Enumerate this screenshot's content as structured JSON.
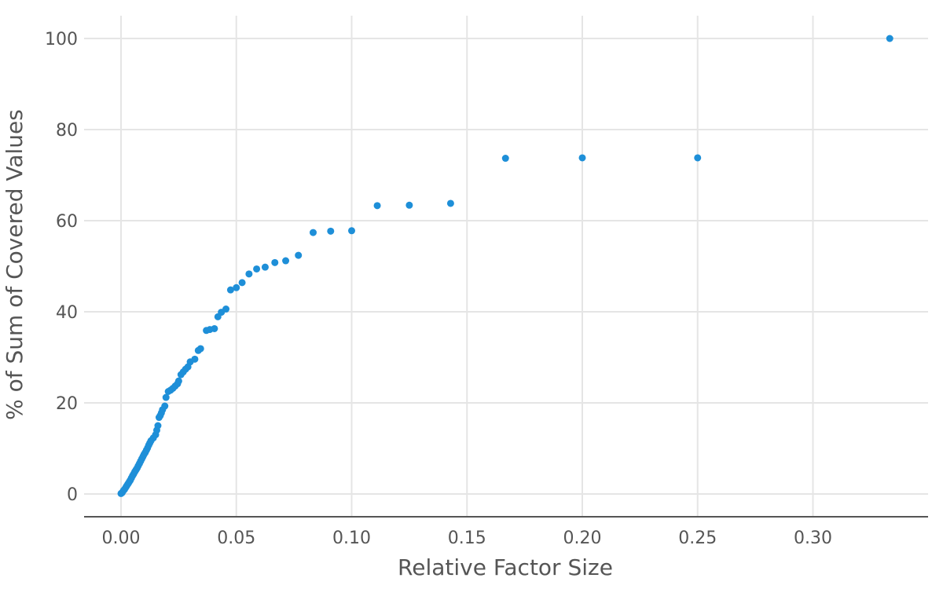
{
  "chart_data": {
    "type": "scatter",
    "title": "",
    "xlabel": "Relative Factor Size",
    "ylabel": "% of Sum of Covered Values",
    "xlim": [
      -0.0163,
      0.3495
    ],
    "ylim": [
      -5.0,
      105.0
    ],
    "x_ticks": [
      {
        "value": 0.0,
        "label": "0.00"
      },
      {
        "value": 0.05,
        "label": "0.05"
      },
      {
        "value": 0.1,
        "label": "0.10"
      },
      {
        "value": 0.15,
        "label": "0.15"
      },
      {
        "value": 0.2,
        "label": "0.20"
      },
      {
        "value": 0.25,
        "label": "0.25"
      },
      {
        "value": 0.3,
        "label": "0.30"
      }
    ],
    "y_ticks": [
      {
        "value": 0,
        "label": "0"
      },
      {
        "value": 20,
        "label": "20"
      },
      {
        "value": 40,
        "label": "40"
      },
      {
        "value": 60,
        "label": "60"
      },
      {
        "value": 80,
        "label": "80"
      },
      {
        "value": 100,
        "label": "100"
      }
    ],
    "grid": true,
    "color": "#1e8fd8",
    "points": [
      {
        "x": 0.0,
        "y": 0.1
      },
      {
        "x": 0.0005,
        "y": 0.3
      },
      {
        "x": 0.001,
        "y": 0.7
      },
      {
        "x": 0.0015,
        "y": 1.0
      },
      {
        "x": 0.002,
        "y": 1.4
      },
      {
        "x": 0.0025,
        "y": 1.8
      },
      {
        "x": 0.003,
        "y": 2.2
      },
      {
        "x": 0.0035,
        "y": 2.6
      },
      {
        "x": 0.004,
        "y": 3.0
      },
      {
        "x": 0.0045,
        "y": 3.5
      },
      {
        "x": 0.005,
        "y": 4.0
      },
      {
        "x": 0.0055,
        "y": 4.4
      },
      {
        "x": 0.006,
        "y": 4.9
      },
      {
        "x": 0.0065,
        "y": 5.3
      },
      {
        "x": 0.007,
        "y": 5.7
      },
      {
        "x": 0.0075,
        "y": 6.2
      },
      {
        "x": 0.008,
        "y": 6.7
      },
      {
        "x": 0.0085,
        "y": 7.2
      },
      {
        "x": 0.009,
        "y": 7.7
      },
      {
        "x": 0.0095,
        "y": 8.2
      },
      {
        "x": 0.01,
        "y": 8.7
      },
      {
        "x": 0.0105,
        "y": 9.1
      },
      {
        "x": 0.011,
        "y": 9.6
      },
      {
        "x": 0.0115,
        "y": 10.1
      },
      {
        "x": 0.012,
        "y": 10.7
      },
      {
        "x": 0.0125,
        "y": 11.2
      },
      {
        "x": 0.013,
        "y": 11.7
      },
      {
        "x": 0.014,
        "y": 12.3
      },
      {
        "x": 0.015,
        "y": 13.0
      },
      {
        "x": 0.0155,
        "y": 14.0
      },
      {
        "x": 0.016,
        "y": 15.0
      },
      {
        "x": 0.0165,
        "y": 16.8
      },
      {
        "x": 0.017,
        "y": 17.2
      },
      {
        "x": 0.0175,
        "y": 17.8
      },
      {
        "x": 0.018,
        "y": 18.5
      },
      {
        "x": 0.019,
        "y": 19.3
      },
      {
        "x": 0.0195,
        "y": 21.2
      },
      {
        "x": 0.0205,
        "y": 22.5
      },
      {
        "x": 0.0215,
        "y": 22.8
      },
      {
        "x": 0.0225,
        "y": 23.2
      },
      {
        "x": 0.0235,
        "y": 23.7
      },
      {
        "x": 0.0245,
        "y": 24.2
      },
      {
        "x": 0.025,
        "y": 24.8
      },
      {
        "x": 0.026,
        "y": 26.2
      },
      {
        "x": 0.027,
        "y": 26.8
      },
      {
        "x": 0.028,
        "y": 27.4
      },
      {
        "x": 0.029,
        "y": 27.9
      },
      {
        "x": 0.03,
        "y": 29.0
      },
      {
        "x": 0.032,
        "y": 29.6
      },
      {
        "x": 0.0335,
        "y": 31.5
      },
      {
        "x": 0.0345,
        "y": 31.9
      },
      {
        "x": 0.037,
        "y": 35.9
      },
      {
        "x": 0.0385,
        "y": 36.1
      },
      {
        "x": 0.0405,
        "y": 36.3
      },
      {
        "x": 0.042,
        "y": 38.9
      },
      {
        "x": 0.0435,
        "y": 39.9
      },
      {
        "x": 0.0455,
        "y": 40.6
      },
      {
        "x": 0.0475,
        "y": 44.8
      },
      {
        "x": 0.05,
        "y": 45.3
      },
      {
        "x": 0.0525,
        "y": 46.4
      },
      {
        "x": 0.0555,
        "y": 48.3
      },
      {
        "x": 0.0588,
        "y": 49.4
      },
      {
        "x": 0.0625,
        "y": 49.8
      },
      {
        "x": 0.0667,
        "y": 50.8
      },
      {
        "x": 0.0714,
        "y": 51.2
      },
      {
        "x": 0.0769,
        "y": 52.4
      },
      {
        "x": 0.0833,
        "y": 57.4
      },
      {
        "x": 0.0909,
        "y": 57.7
      },
      {
        "x": 0.1,
        "y": 57.8
      },
      {
        "x": 0.1111,
        "y": 63.3
      },
      {
        "x": 0.125,
        "y": 63.4
      },
      {
        "x": 0.1429,
        "y": 63.8
      },
      {
        "x": 0.1667,
        "y": 73.7
      },
      {
        "x": 0.2,
        "y": 73.8
      },
      {
        "x": 0.25,
        "y": 73.8
      },
      {
        "x": 0.3333,
        "y": 100.0
      }
    ]
  }
}
